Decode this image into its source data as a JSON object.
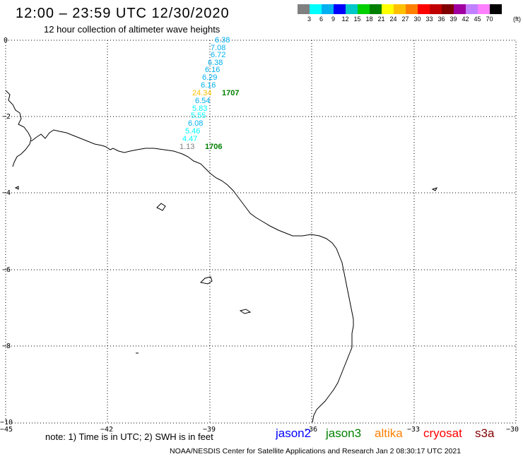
{
  "header": {
    "title": "12:00 – 23:59 UTC 12/30/2020",
    "subtitle": "12 hour collection of altimeter wave heights"
  },
  "color_scale": {
    "labels": [
      "3",
      "6",
      "9",
      "12",
      "15",
      "18",
      "21",
      "24",
      "27",
      "30",
      "33",
      "36",
      "39",
      "42",
      "45",
      "70"
    ],
    "unit": "(ft)",
    "colors": [
      "#808080",
      "#00ffff",
      "#00b0f0",
      "#0000ff",
      "#00c8c8",
      "#00d000",
      "#008000",
      "#ffff00",
      "#ffc000",
      "#ff8000",
      "#ff0000",
      "#c00000",
      "#800000",
      "#a000a0",
      "#c080ff",
      "#ff80ff",
      "#000000"
    ]
  },
  "map": {
    "lat_labels": [
      "0",
      "−2",
      "−4",
      "−6",
      "−8",
      "−10"
    ],
    "lon_labels": [
      "−45",
      "−42",
      "−39",
      "−36",
      "−33",
      "−30"
    ],
    "track_values": [
      {
        "text": "6.38",
        "color": "#00b0f0"
      },
      {
        "text": "7.08",
        "color": "#00b0f0"
      },
      {
        "text": "6.72",
        "color": "#00b0f0"
      },
      {
        "text": "6.38",
        "color": "#00b0f0"
      },
      {
        "text": "6.16",
        "color": "#00b0f0"
      },
      {
        "text": "6.29",
        "color": "#00b0f0"
      },
      {
        "text": "6.16",
        "color": "#00b0f0"
      },
      {
        "text": "24.34",
        "color": "#ffc000"
      },
      {
        "text": "6.54",
        "color": "#00b0f0"
      },
      {
        "text": "5.83",
        "color": "#00ffff"
      },
      {
        "text": "5.55",
        "color": "#00ffff"
      },
      {
        "text": "6.08",
        "color": "#00b0f0"
      },
      {
        "text": "5.46",
        "color": "#00ffff"
      },
      {
        "text": "4.47",
        "color": "#00ffff"
      },
      {
        "text": "1.13",
        "color": "#808080"
      }
    ],
    "time_labels": [
      "1707",
      "1706"
    ]
  },
  "note": "note:  1) Time is in UTC; 2) SWH is in feet",
  "legend": [
    {
      "text": "jason2",
      "color": "#0000ff"
    },
    {
      "text": "jason3",
      "color": "#008000"
    },
    {
      "text": "altika",
      "color": "#ff8000"
    },
    {
      "text": "cryosat",
      "color": "#ff0000"
    },
    {
      "text": "s3a",
      "color": "#800000"
    }
  ],
  "footer": "NOAA/NESDIS Center for Satellite Applications and Research    Jan  2 08:30:17 UTC 2021"
}
